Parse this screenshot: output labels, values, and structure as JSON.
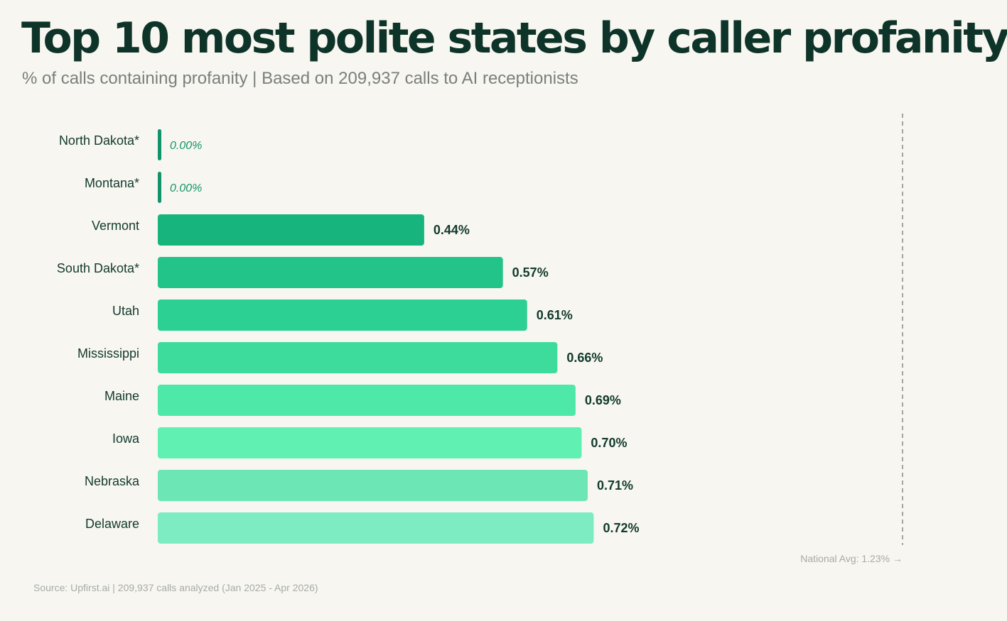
{
  "header": {
    "title": "Top 10 most polite states by caller profanity",
    "subtitle": "% of calls containing profanity | Based on 209,937 calls to AI receptionists"
  },
  "footer": {
    "source": "Source: Upfirst.ai | 209,937 calls analyzed (Jan 2025 - Apr 2026)"
  },
  "chart_data": {
    "type": "bar",
    "orientation": "horizontal",
    "title": "Top 10 most polite states by caller profanity",
    "subtitle": "% of calls containing profanity | Based on 209,937 calls to AI receptionists",
    "categories": [
      "North Dakota*",
      "Montana*",
      "Vermont",
      "South Dakota*",
      "Utah",
      "Mississippi",
      "Maine",
      "Iowa",
      "Nebraska",
      "Delaware"
    ],
    "values": [
      0.0,
      0.0,
      0.44,
      0.57,
      0.61,
      0.66,
      0.69,
      0.7,
      0.71,
      0.72
    ],
    "value_labels": [
      "0.00%",
      "0.00%",
      "0.44%",
      "0.57%",
      "0.61%",
      "0.66%",
      "0.69%",
      "0.70%",
      "0.71%",
      "0.72%"
    ],
    "bar_colors": [
      "#13936a",
      "#13936a",
      "#18b47e",
      "#22c48a",
      "#2cd092",
      "#3ddc9c",
      "#4ee8a8",
      "#5ff0b2",
      "#6ce6b4",
      "#7decc2"
    ],
    "xlim": [
      0,
      1.23
    ],
    "reference_line": {
      "value": 1.23,
      "label": "National Avg: 1.23% →"
    },
    "grid": false,
    "legend": "none"
  }
}
